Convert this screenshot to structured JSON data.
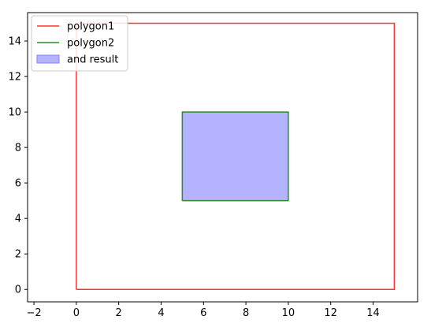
{
  "chart_data": {
    "type": "area",
    "title": "",
    "xlabel": "",
    "ylabel": "",
    "xlim": [
      -2.3,
      16.1
    ],
    "ylim": [
      -0.7,
      15.6
    ],
    "xticks": [
      -2,
      0,
      2,
      4,
      6,
      8,
      10,
      12,
      14
    ],
    "yticks": [
      0,
      2,
      4,
      6,
      8,
      10,
      12,
      14
    ],
    "grid": false,
    "legend_position": "upper-left",
    "series": [
      {
        "name": "polygon1",
        "kind": "line",
        "color": "#ff3333",
        "x": [
          0,
          15,
          15,
          0,
          0
        ],
        "y": [
          0,
          0,
          15,
          15,
          0
        ]
      },
      {
        "name": "polygon2",
        "kind": "line",
        "color": "#2e8b2e",
        "x": [
          5,
          10,
          10,
          5,
          5
        ],
        "y": [
          5,
          5,
          10,
          10,
          5
        ]
      },
      {
        "name": "and result",
        "kind": "fill",
        "color": "#b3b3ff",
        "edge_color": "#8080ff",
        "x": [
          5,
          10,
          10,
          5
        ],
        "y": [
          5,
          5,
          10,
          10
        ]
      }
    ]
  }
}
